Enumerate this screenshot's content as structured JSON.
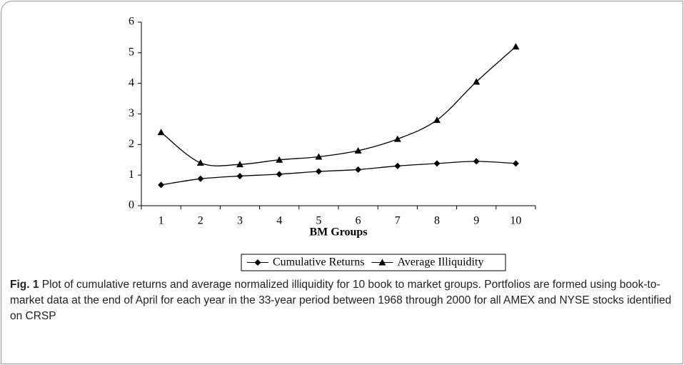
{
  "chart_data": {
    "type": "line",
    "x_label": "BM Groups",
    "categories": [
      "1",
      "2",
      "3",
      "4",
      "5",
      "6",
      "7",
      "8",
      "9",
      "10"
    ],
    "series": [
      {
        "name": "Cumulative Returns",
        "color": "#000000",
        "marker": "diamond",
        "values": [
          0.68,
          0.88,
          0.97,
          1.03,
          1.12,
          1.18,
          1.3,
          1.38,
          1.45,
          1.38
        ]
      },
      {
        "name": "Average Illiquidity",
        "color": "#000000",
        "marker": "triangle",
        "values": [
          2.4,
          1.4,
          1.35,
          1.5,
          1.6,
          1.8,
          2.18,
          2.8,
          4.05,
          5.2
        ]
      }
    ],
    "ylim": [
      0,
      6
    ],
    "yticks": [
      0,
      1,
      2,
      3,
      4,
      5,
      6
    ],
    "legend": "bottom"
  },
  "caption": {
    "label": "Fig. 1",
    "text": "Plot of cumulative returns and average normalized illiquidity for 10 book to market groups. Portfolios are formed using book-to-market data at the end of April for each year in the 33-year period between 1968 through 2000 for all AMEX and NYSE stocks identified on CRSP"
  }
}
